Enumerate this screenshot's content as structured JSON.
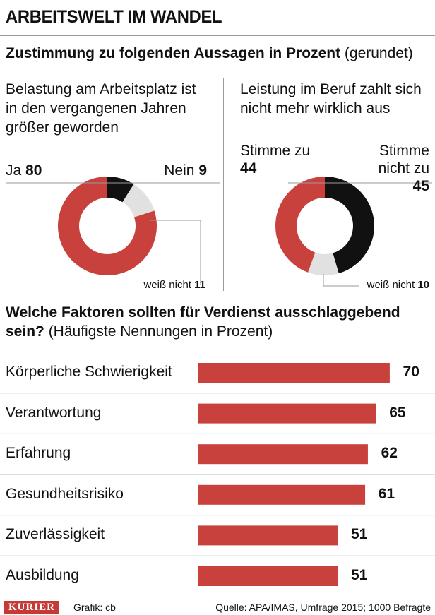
{
  "title": "ARBEITSWELT IM WANDEL",
  "subtitle": {
    "bold": "Zustimmung zu folgenden Aussagen in Prozent",
    "normal": " (gerundet)"
  },
  "colors": {
    "red": "#c9413d",
    "black": "#111111",
    "grey": "#e1e1e1",
    "line": "#9a9a9a"
  },
  "chart_data": [
    {
      "type": "pie",
      "title": "Belastung am Arbeitsplatz ist in den vergangenen Jahren größer geworden",
      "title_lines": [
        "Belastung am Arbeitsplatz ist",
        "in den vergangenen Jahren",
        "größer geworden"
      ],
      "slices": [
        {
          "label": "Ja",
          "value": 80,
          "color": "#c9413d"
        },
        {
          "label": "Nein",
          "value": 9,
          "color": "#111111"
        },
        {
          "label": "weiß nicht",
          "value": 11,
          "color": "#e1e1e1"
        }
      ]
    },
    {
      "type": "pie",
      "title": "Leistung im Beruf zahlt sich nicht mehr wirklich aus",
      "title_lines": [
        "Leistung im Beruf zahlt sich",
        "nicht mehr wirklich aus"
      ],
      "slices": [
        {
          "label": "Stimme zu",
          "value": 44,
          "color": "#c9413d"
        },
        {
          "label": "Stimme nicht zu",
          "value": 45,
          "color": "#111111"
        },
        {
          "label": "weiß nicht",
          "value": 10,
          "color": "#e1e1e1"
        }
      ]
    },
    {
      "type": "bar",
      "title_bold": "Welche Faktoren sollten für Verdienst ausschlaggebend",
      "title_bold2": "sein?",
      "title_normal": " (Häufigste Nennungen in Prozent)",
      "categories": [
        "Körperliche Schwierigkeit",
        "Verantwortung",
        "Erfahrung",
        "Gesundheitsrisiko",
        "Zuverlässigkeit",
        "Ausbildung"
      ],
      "values": [
        70,
        65,
        62,
        61,
        51,
        51
      ],
      "xlim": [
        0,
        100
      ]
    }
  ],
  "pie1_labels": {
    "ja": "Ja",
    "ja_val": "80",
    "nein": "Nein",
    "nein_val": "9",
    "wn": "weiß nicht",
    "wn_val": "11"
  },
  "pie2_labels": {
    "zu_line1": "Stimme zu",
    "zu_val": "44",
    "nicht_line1": "Stimme",
    "nicht_line2": "nicht zu",
    "nicht_val": "45",
    "wn": "weiß nicht",
    "wn_val": "10"
  },
  "footer": {
    "brand": "KURIER",
    "credit": "Grafik: cb",
    "source": "Quelle: APA/IMAS, Umfrage 2015; 1000 Befragte"
  }
}
